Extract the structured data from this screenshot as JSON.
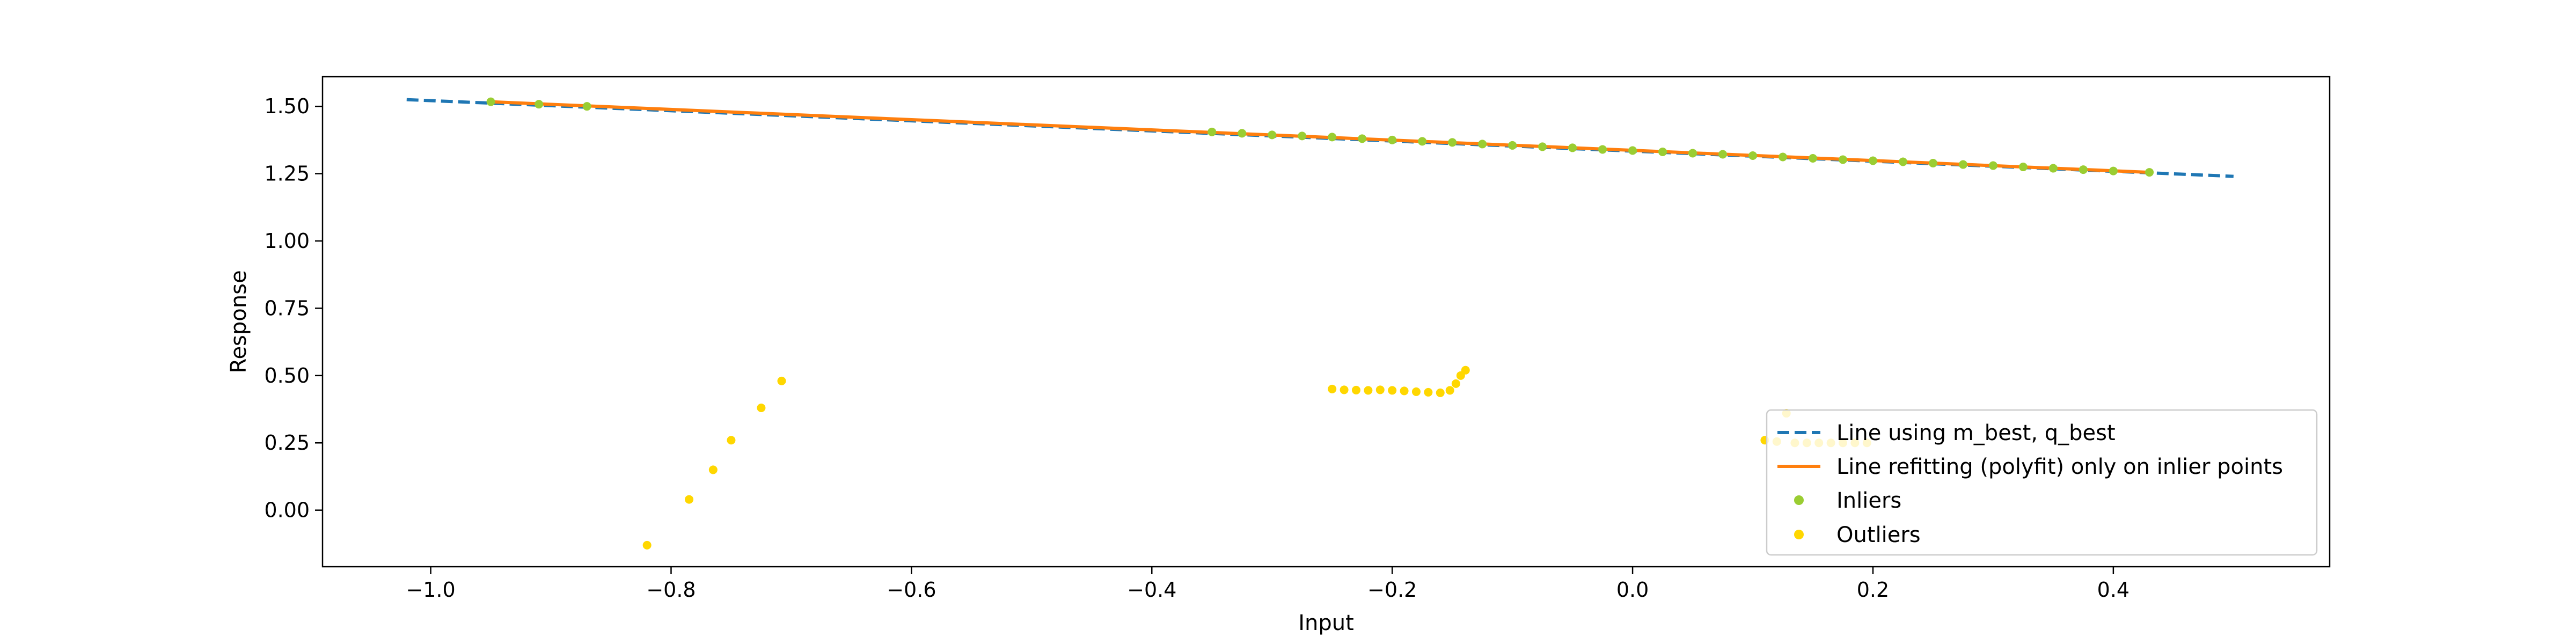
{
  "chart_data": {
    "type": "scatter",
    "title": "",
    "xlabel": "Input",
    "ylabel": "Response",
    "xlim": [
      -1.09,
      0.58
    ],
    "ylim": [
      -0.21,
      1.61
    ],
    "xticks": [
      -1.0,
      -0.8,
      -0.6,
      -0.4,
      -0.2,
      0.0,
      0.2,
      0.4
    ],
    "xtick_labels": [
      "−1.0",
      "−0.8",
      "−0.6",
      "−0.4",
      "−0.2",
      "0.0",
      "0.2",
      "0.4"
    ],
    "yticks": [
      0.0,
      0.25,
      0.5,
      0.75,
      1.0,
      1.25,
      1.5
    ],
    "ytick_labels": [
      "0.00",
      "0.25",
      "0.50",
      "0.75",
      "1.00",
      "1.25",
      "1.50"
    ],
    "grid": false,
    "legend_position": "lower-right",
    "series": [
      {
        "name": "Line using m_best, q_best",
        "kind": "line",
        "style": "dashed",
        "color": "#1f77b4",
        "x": [
          -1.02,
          0.5
        ],
        "y": [
          1.525,
          1.24
        ]
      },
      {
        "name": "Line refitting (polyfit) only on inlier points",
        "kind": "line",
        "style": "solid",
        "color": "#ff7f0e",
        "x": [
          -0.95,
          0.43
        ],
        "y": [
          1.517,
          1.255
        ]
      },
      {
        "name": "Inliers",
        "kind": "scatter",
        "color": "#9acd32",
        "x": [
          -0.95,
          -0.91,
          -0.87,
          -0.35,
          -0.325,
          -0.3,
          -0.275,
          -0.25,
          -0.225,
          -0.2,
          -0.175,
          -0.15,
          -0.125,
          -0.1,
          -0.075,
          -0.05,
          -0.025,
          0.0,
          0.025,
          0.05,
          0.075,
          0.1,
          0.125,
          0.15,
          0.175,
          0.2,
          0.225,
          0.25,
          0.275,
          0.3,
          0.325,
          0.35,
          0.375,
          0.4,
          0.43
        ],
        "y": [
          1.517,
          1.508,
          1.5,
          1.405,
          1.4,
          1.394,
          1.39,
          1.386,
          1.38,
          1.375,
          1.37,
          1.366,
          1.36,
          1.355,
          1.35,
          1.346,
          1.34,
          1.336,
          1.331,
          1.326,
          1.322,
          1.317,
          1.312,
          1.307,
          1.302,
          1.298,
          1.294,
          1.289,
          1.284,
          1.28,
          1.275,
          1.27,
          1.265,
          1.26,
          1.255
        ]
      },
      {
        "name": "Outliers",
        "kind": "scatter",
        "color": "#ffd700",
        "x": [
          -0.82,
          -0.785,
          -0.765,
          -0.75,
          -0.725,
          -0.708,
          -0.25,
          -0.24,
          -0.23,
          -0.22,
          -0.21,
          -0.2,
          -0.19,
          -0.18,
          -0.17,
          -0.16,
          -0.152,
          -0.147,
          -0.143,
          -0.139,
          0.11,
          0.12,
          0.128,
          0.135,
          0.145,
          0.155,
          0.165,
          0.175,
          0.185,
          0.195
        ],
        "y": [
          -0.13,
          0.04,
          0.15,
          0.26,
          0.38,
          0.48,
          0.45,
          0.447,
          0.446,
          0.445,
          0.447,
          0.445,
          0.443,
          0.44,
          0.438,
          0.436,
          0.445,
          0.47,
          0.5,
          0.52,
          0.26,
          0.255,
          0.36,
          0.25,
          0.25,
          0.25,
          0.25,
          0.25,
          0.25,
          0.25
        ]
      }
    ]
  }
}
